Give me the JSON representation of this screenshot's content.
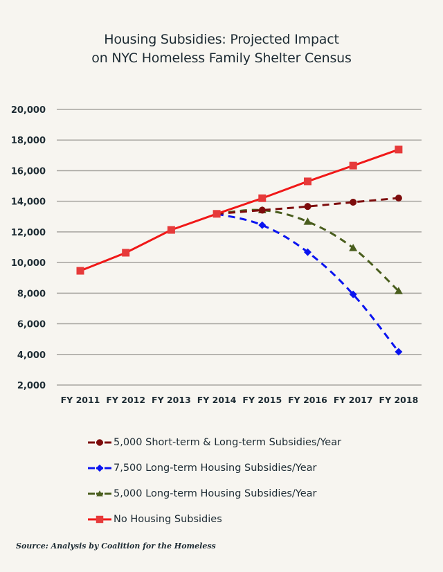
{
  "chart_data": {
    "type": "line",
    "title": "Housing Subsidies: Projected Impact on NYC Homeless Family Shelter Census",
    "title_lines": [
      "Housing Subsidies: Projected Impact",
      "on NYC Homeless Family Shelter Census"
    ],
    "xlabel": "",
    "ylabel": "",
    "categories": [
      "FY 2011",
      "FY 2012",
      "FY 2013",
      "FY 2014",
      "FY 2015",
      "FY 2016",
      "FY 2017",
      "FY 2018"
    ],
    "ylim": [
      2000,
      20000
    ],
    "yticks": [
      20000,
      18000,
      16000,
      14000,
      12000,
      10000,
      8000,
      6000,
      4000,
      2000
    ],
    "ytick_labels": [
      "20,000",
      "18,000",
      "16,000",
      "14,000",
      "12,000",
      "10,000",
      "8,000",
      "6,000",
      "4,000",
      "2,000"
    ],
    "grid": "horizontal",
    "legend_position": "bottom",
    "series": [
      {
        "name": "5,000 Short-term & Long-term Subsidies/Year",
        "color": "#7d0c0c",
        "style": "dashed",
        "marker": "circle",
        "values": [
          null,
          null,
          null,
          13180,
          13420,
          13660,
          13940,
          14210
        ]
      },
      {
        "name": "7,500 Long-term Housing Subsidies/Year",
        "color": "#0a14f0",
        "style": "dashed",
        "marker": "diamond",
        "values": [
          null,
          null,
          null,
          13180,
          12440,
          10680,
          7920,
          4170
        ]
      },
      {
        "name": "5,000 Long-term Housing Subsidies/Year",
        "color": "#4a5e1e",
        "style": "dashed",
        "marker": "triangle",
        "values": [
          null,
          null,
          null,
          13180,
          13420,
          12670,
          10950,
          8140
        ]
      },
      {
        "name": "No Housing Subsidies",
        "color": "#f01818",
        "marker_color": "#e63a3a",
        "style": "solid",
        "marker": "square",
        "values": [
          9460,
          10640,
          12130,
          13180,
          14200,
          15300,
          16330,
          17380
        ]
      }
    ],
    "source": "Source: Analysis by Coalition for the Homeless"
  }
}
